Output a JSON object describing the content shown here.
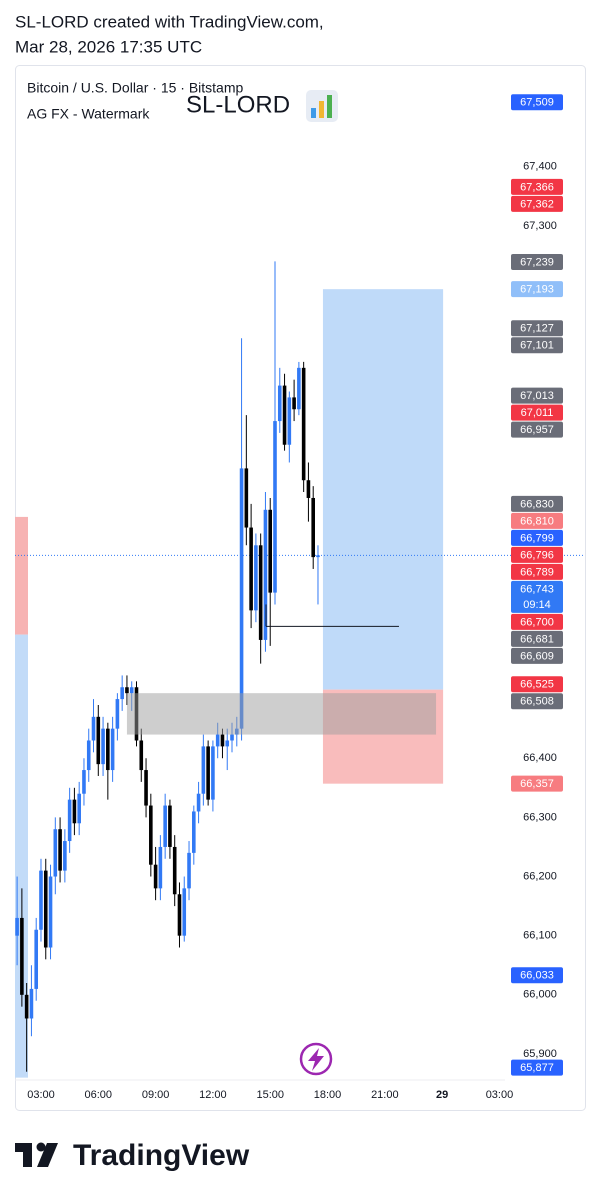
{
  "chart_data": {
    "type": "candlestick",
    "caption": [
      "SL-LORD created with TradingView.com,",
      "Mar 28, 2026 17:35 UTC"
    ],
    "symbol_line": "Bitcoin / U.S. Dollar · 15 · Bitstamp",
    "indicator": "AG FX - Watermark",
    "watermark": "SL-LORD",
    "brand": "TradingView",
    "up_color": "#3179f5",
    "down_color": "#000000",
    "xlim": [
      1.64,
      27.29
    ],
    "ylim": [
      65856,
      67572
    ],
    "xticks": [
      {
        "value": 3,
        "label": "03:00"
      },
      {
        "value": 6,
        "label": "06:00"
      },
      {
        "value": 9,
        "label": "09:00"
      },
      {
        "value": 12,
        "label": "12:00"
      },
      {
        "value": 15,
        "label": "15:00"
      },
      {
        "value": 18,
        "label": "18:00"
      },
      {
        "value": 21,
        "label": "21:00"
      },
      {
        "value": 24,
        "label": "29"
      },
      {
        "value": 27,
        "label": "03:00"
      }
    ],
    "yticks": [
      {
        "value": 65900,
        "label": "65,900"
      },
      {
        "value": 66000,
        "label": "66,000"
      },
      {
        "value": 66100,
        "label": "66,100"
      },
      {
        "value": 66200,
        "label": "66,200"
      },
      {
        "value": 66300,
        "label": "66,300"
      },
      {
        "value": 66400,
        "label": "66,400"
      },
      {
        "value": 67300,
        "label": "67,300"
      },
      {
        "value": 67400,
        "label": "67,400"
      }
    ],
    "x": [
      1.75,
      2,
      2.25,
      2.5,
      2.75,
      3,
      3.25,
      3.5,
      3.75,
      4,
      4.25,
      4.5,
      4.75,
      5,
      5.25,
      5.5,
      5.75,
      6,
      6.25,
      6.5,
      6.75,
      7,
      7.25,
      7.5,
      7.75,
      8,
      8.25,
      8.5,
      8.75,
      9,
      9.25,
      9.5,
      9.75,
      10,
      10.25,
      10.5,
      10.75,
      11,
      11.25,
      11.5,
      11.75,
      12,
      12.25,
      12.5,
      12.75,
      13,
      13.25,
      13.5,
      13.75,
      14,
      14.25,
      14.5,
      14.75,
      15,
      15.25,
      15.5,
      15.75,
      16,
      16.25,
      16.5,
      16.75,
      17,
      17.25,
      17.5
    ],
    "open": [
      66100,
      66130,
      66000,
      65960,
      66010,
      66110,
      66210,
      66080,
      66200,
      66280,
      66210,
      66260,
      66330,
      66290,
      66340,
      66380,
      66430,
      66470,
      66390,
      66450,
      66380,
      66450,
      66500,
      66520,
      66510,
      66520,
      66430,
      66380,
      66320,
      66220,
      66180,
      66250,
      66320,
      66250,
      66170,
      66100,
      66180,
      66240,
      66310,
      66340,
      66420,
      66330,
      66420,
      66440,
      66420,
      66430,
      66440,
      66450,
      66890,
      66790,
      66650,
      66760,
      66600,
      66820,
      66680,
      66970,
      67030,
      66930,
      67010,
      66990,
      67060,
      66870,
      66840,
      66740
    ],
    "high": [
      66200,
      66180,
      66020,
      66050,
      66130,
      66230,
      66230,
      66220,
      66300,
      66300,
      66280,
      66350,
      66350,
      66360,
      66400,
      66450,
      66500,
      66490,
      66470,
      66460,
      66470,
      66510,
      66540,
      66540,
      66530,
      66530,
      66450,
      66400,
      66340,
      66250,
      66270,
      66340,
      66330,
      66270,
      66190,
      66200,
      66260,
      66320,
      66360,
      66440,
      66430,
      66430,
      66460,
      66450,
      66450,
      66460,
      66470,
      67110,
      66980,
      66830,
      66780,
      66780,
      66850,
      66840,
      67240,
      67060,
      67050,
      67020,
      67040,
      67070,
      67070,
      66900,
      66860,
      66760
    ],
    "low": [
      66050,
      65980,
      65870,
      65930,
      65990,
      66090,
      66060,
      66060,
      66170,
      66190,
      66190,
      66240,
      66270,
      66270,
      66320,
      66360,
      66410,
      66370,
      66370,
      66330,
      66360,
      66430,
      66480,
      66490,
      66480,
      66420,
      66360,
      66300,
      66200,
      66160,
      66160,
      66230,
      66230,
      66150,
      66080,
      66090,
      66160,
      66220,
      66290,
      66320,
      66320,
      66310,
      66400,
      66400,
      66380,
      66410,
      66420,
      66430,
      66760,
      66620,
      66630,
      66560,
      66580,
      66590,
      66660,
      66950,
      66920,
      66900,
      66970,
      66980,
      66850,
      66800,
      66720,
      66660
    ],
    "close": [
      66130,
      66000,
      65960,
      66010,
      66110,
      66210,
      66080,
      66200,
      66280,
      66210,
      66260,
      66330,
      66290,
      66340,
      66380,
      66430,
      66470,
      66390,
      66450,
      66380,
      66450,
      66500,
      66520,
      66510,
      66520,
      66430,
      66380,
      66320,
      66220,
      66180,
      66250,
      66320,
      66250,
      66170,
      66100,
      66180,
      66240,
      66310,
      66340,
      66420,
      66330,
      66420,
      66440,
      66420,
      66430,
      66440,
      66450,
      66890,
      66790,
      66650,
      66760,
      66600,
      66820,
      66680,
      66970,
      67030,
      66930,
      67010,
      66990,
      67060,
      66870,
      66840,
      66740,
      66743
    ],
    "left_zones": [
      {
        "top": 66808,
        "bottom": 66609,
        "color": "#f7b3b3"
      },
      {
        "top": 66609,
        "bottom": 65860,
        "color": "#c2dbf8"
      }
    ],
    "long_position": {
      "x": [
        17.76,
        24.05
      ],
      "target": 67193,
      "entry": 66516,
      "stop": 66357,
      "profit_color": "#bfdaf9",
      "loss_color": "#f9bcbc"
    },
    "zone": {
      "x": [
        7.5,
        23.68
      ],
      "top": 66510,
      "bottom": 66440,
      "color": "#9e9e9e"
    },
    "ray": {
      "x": [
        14.78,
        21.74
      ],
      "price": 66623,
      "anchor": 66660
    },
    "price_labels": [
      {
        "value": 67509,
        "label": "67,509",
        "color": "#2962ff"
      },
      {
        "value": 67366,
        "label": "67,366",
        "color": "#f23645"
      },
      {
        "value": 67362,
        "label": "67,362",
        "color": "#f23645"
      },
      {
        "value": 67239,
        "label": "67,239",
        "color": "#6a6d78"
      },
      {
        "value": 67193,
        "label": "67,193",
        "color": "#90bff9"
      },
      {
        "value": 67127,
        "label": "67,127",
        "color": "#6a6d78"
      },
      {
        "value": 67101,
        "label": "67,101",
        "color": "#6a6d78"
      },
      {
        "value": 67013,
        "label": "67,013",
        "color": "#6a6d78"
      },
      {
        "value": 67011,
        "label": "67,011",
        "color": "#f23645"
      },
      {
        "value": 66957,
        "label": "66,957",
        "color": "#6a6d78"
      },
      {
        "value": 66830,
        "label": "66,830",
        "color": "#6a6d78"
      },
      {
        "value": 66810,
        "label": "66,810",
        "color": "#f77c80"
      },
      {
        "value": 66799,
        "label": "66,799",
        "color": "#2962ff"
      },
      {
        "value": 66796,
        "label": "66,796",
        "color": "#f23645"
      },
      {
        "value": 66789,
        "label": "66,789",
        "color": "#f23645"
      },
      {
        "value": 66743,
        "label": "66,743",
        "color": "#3179f5",
        "countdown": "09:14"
      },
      {
        "value": 66700,
        "label": "66,700",
        "color": "#f23645"
      },
      {
        "value": 66681,
        "label": "66,681",
        "color": "#6a6d78"
      },
      {
        "value": 66609,
        "label": "66,609",
        "color": "#6a6d78"
      },
      {
        "value": 66525,
        "label": "66,525",
        "color": "#f23645"
      },
      {
        "value": 66508,
        "label": "66,508",
        "color": "#6a6d78"
      },
      {
        "value": 66357,
        "label": "66,357",
        "color": "#f77c80"
      },
      {
        "value": 66033,
        "label": "66,033",
        "color": "#2962ff"
      },
      {
        "value": 65877,
        "label": "65,877",
        "color": "#2962ff"
      }
    ]
  }
}
